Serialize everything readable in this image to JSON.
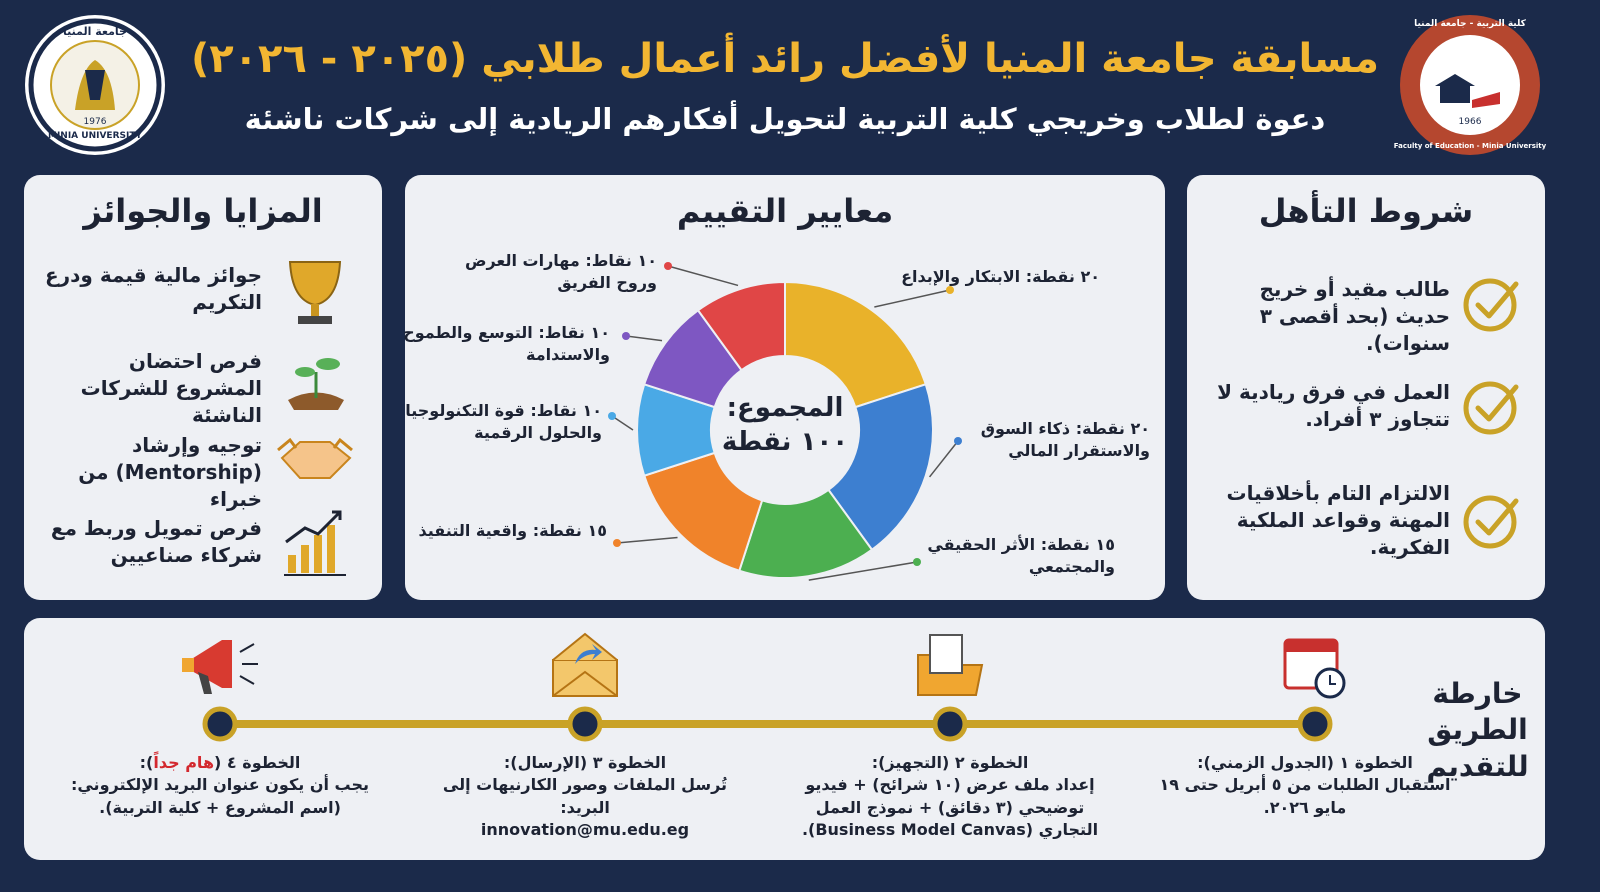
{
  "header": {
    "title": "مسابقة جامعة المنيا لأفضل رائد أعمال طلابي (٢٠٢٥ - ٢٠٢٦)",
    "subtitle": "دعوة لطلاب وخريجي كلية التربية لتحويل أفكارهم الريادية إلى شركات ناشئة"
  },
  "logos": {
    "left": {
      "name": "جامعة المنيا",
      "name_en": "MINIA UNIVERSITY",
      "year": "1976"
    },
    "right": {
      "name": "كلية التربية - جامعة المنيا",
      "name_en": "Faculty of Education - Minia University",
      "year": "1966"
    }
  },
  "eligibility": {
    "title": "شروط التأهل",
    "items": [
      "طالب مقيد أو خريج حديث (بحد أقصى ٣ سنوات).",
      "العمل في فرق ريادية لا تتجاوز ٣ أفراد.",
      "الالتزام التام بأخلاقيات المهنة وقواعد الملكية الفكرية."
    ]
  },
  "benefits": {
    "title": "المزايا والجوائز",
    "items": [
      "جوائز مالية قيمة ودرع التكريم",
      "فرص احتضان المشروع للشركات الناشئة",
      "توجيه وإرشاد (Mentorship) من خبراء",
      "فرص تمويل وربط مع شركاء صناعيين"
    ]
  },
  "chart_data": {
    "type": "donut",
    "title": "معايير التقييم",
    "center_label": "المجموع:",
    "center_value_label": "١٠٠ نقطة",
    "categories": [
      "الابتكار والإبداع",
      "ذكاء السوق والاستقرار المالي",
      "الأثر الحقيقي والمجتمعي",
      "واقعية التنفيذ",
      "قوة التكنولوجيا والحلول الرقمية",
      "التوسع والطموح والاستدامة",
      "مهارات العرض وروح الفريق"
    ],
    "values": [
      20,
      20,
      15,
      15,
      10,
      10,
      10
    ],
    "value_labels": [
      "٢٠ نقطة:",
      "٢٠ نقطة:",
      "١٥ نقطة:",
      "١٥ نقطة:",
      "١٠ نقاط:",
      "١٠ نقاط:",
      "١٠ نقاط:"
    ],
    "colors": [
      "#e9b22a",
      "#3d7fd0",
      "#4caf50",
      "#f0832a",
      "#4aa9e6",
      "#7e57c2",
      "#e04646"
    ]
  },
  "roadmap": {
    "title": "خارطة الطريق للتقديم",
    "steps": [
      {
        "title": "الخطوة ١ (الجدول الزمني):",
        "body": "استقبال الطلبات من ٥ أبريل حتى ١٩ مايو ٢٠٢٦."
      },
      {
        "title": "الخطوة ٢ (التجهيز):",
        "body": "إعداد ملف عرض (١٠ شرائح) + فيديو توضيحي (٣ دقائق) + نموذج العمل التجاري (Business Model Canvas)."
      },
      {
        "title": "الخطوة ٣ (الإرسال):",
        "body": "تُرسل الملفات وصور الكارنيهات إلى البريد:",
        "email": "innovation@mu.edu.eg"
      },
      {
        "title_parts": [
          "الخطوة ٤ (",
          "هام جداً",
          "):"
        ],
        "body": "يجب أن يكون عنوان البريد الإلكتروني: (اسم المشروع + كلية التربية)."
      }
    ]
  }
}
